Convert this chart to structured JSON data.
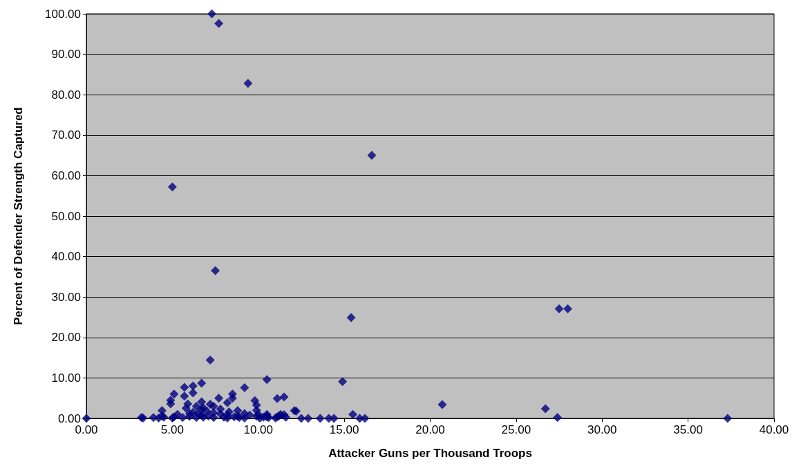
{
  "chart_data": {
    "type": "scatter",
    "xlabel": "Attacker Guns per Thousand Troops",
    "ylabel": "Percent of Defender Strength Captured",
    "marker": "diamond",
    "grid": "y",
    "xlim": [
      0,
      40
    ],
    "ylim": [
      0,
      100
    ],
    "xticks": [
      {
        "value": 0,
        "label": "0.00"
      },
      {
        "value": 5,
        "label": "5.00"
      },
      {
        "value": 10,
        "label": "10.00"
      },
      {
        "value": 15,
        "label": "15.00"
      },
      {
        "value": 20,
        "label": "20.00"
      },
      {
        "value": 25,
        "label": "25.00"
      },
      {
        "value": 30,
        "label": "30.00"
      },
      {
        "value": 35,
        "label": "35.00"
      },
      {
        "value": 40,
        "label": "40.00"
      }
    ],
    "yticks": [
      {
        "value": 0,
        "label": "0.00"
      },
      {
        "value": 10,
        "label": "10.00"
      },
      {
        "value": 20,
        "label": "20.00"
      },
      {
        "value": 30,
        "label": "30.00"
      },
      {
        "value": 40,
        "label": "40.00"
      },
      {
        "value": 50,
        "label": "50.00"
      },
      {
        "value": 60,
        "label": "60.00"
      },
      {
        "value": 70,
        "label": "70.00"
      },
      {
        "value": 80,
        "label": "80.00"
      },
      {
        "value": 90,
        "label": "90.00"
      },
      {
        "value": 100,
        "label": "100.00"
      }
    ],
    "series": [
      {
        "color": "#000080",
        "x": [
          0,
          3.2,
          3.3,
          3.9,
          4.2,
          4.4,
          4.5,
          4.9,
          5.0,
          5.1,
          5.3,
          5.6,
          5.7,
          5.9,
          6.0,
          6.2,
          6.2,
          6.4,
          6.5,
          6.7,
          6.7,
          6.8,
          7.0,
          7.1,
          7.2,
          7.4,
          7.4,
          7.7,
          7.8,
          8.0,
          8.2,
          8.2,
          8.3,
          8.5,
          8.6,
          8.8,
          8.9,
          9.2,
          9.2,
          9.5,
          9.8,
          9.9,
          10.0,
          10.1,
          10.3,
          10.5,
          10.5,
          10.6,
          11.0,
          11.1,
          11.2,
          11.3,
          11.5,
          11.6,
          12.1,
          12.2,
          12.5,
          12.9,
          13.6,
          14.1,
          14.4,
          15.5,
          15.9,
          16.2,
          4.4,
          4.9,
          5.1,
          5.7,
          5.8,
          6.0,
          6.2,
          6.4,
          6.7,
          6.7,
          6.8,
          7.2,
          7.4,
          7.8,
          8.2,
          8.5,
          8.8,
          9.2,
          9.9,
          9.9,
          10.5,
          10.5,
          11.1,
          11.5,
          14.9,
          7.3,
          7.7,
          9.4,
          16.6,
          5.0,
          7.5,
          15.4,
          27.5,
          28.0,
          20.7,
          26.7,
          27.4,
          37.3
        ],
        "values": [
          0,
          0.2,
          0.1,
          0.2,
          0.1,
          1.9,
          0.3,
          3.6,
          0.1,
          0.4,
          1.0,
          0.2,
          7.7,
          3.6,
          0.5,
          8.0,
          1.5,
          0.2,
          1.2,
          2.2,
          4.1,
          0.3,
          1.8,
          0.6,
          14.4,
          3.0,
          0.2,
          5.0,
          1.1,
          0.3,
          3.9,
          0.1,
          1.6,
          6.0,
          0.4,
          1.9,
          0.2,
          7.6,
          0.1,
          0.8,
          4.4,
          3.3,
          1.0,
          0.1,
          0.3,
          9.6,
          1.0,
          0.2,
          0.1,
          4.9,
          0.6,
          1.0,
          5.3,
          0.3,
          1.9,
          1.8,
          0.0,
          0.0,
          0.0,
          0.0,
          0.0,
          1.0,
          0.0,
          0.0,
          0.6,
          4.5,
          6.0,
          5.5,
          2.5,
          1.2,
          6.3,
          3.0,
          0.8,
          8.7,
          2.6,
          3.5,
          1.4,
          2.3,
          0.8,
          5.0,
          0.5,
          1.2,
          2.0,
          0.5,
          0.5,
          0.4,
          0.4,
          0.9,
          9.1,
          100,
          97.6,
          82.8,
          65.0,
          57.2,
          36.5,
          24.9,
          27.1,
          27.1,
          3.4,
          2.4,
          0.2,
          0.0
        ]
      }
    ]
  }
}
